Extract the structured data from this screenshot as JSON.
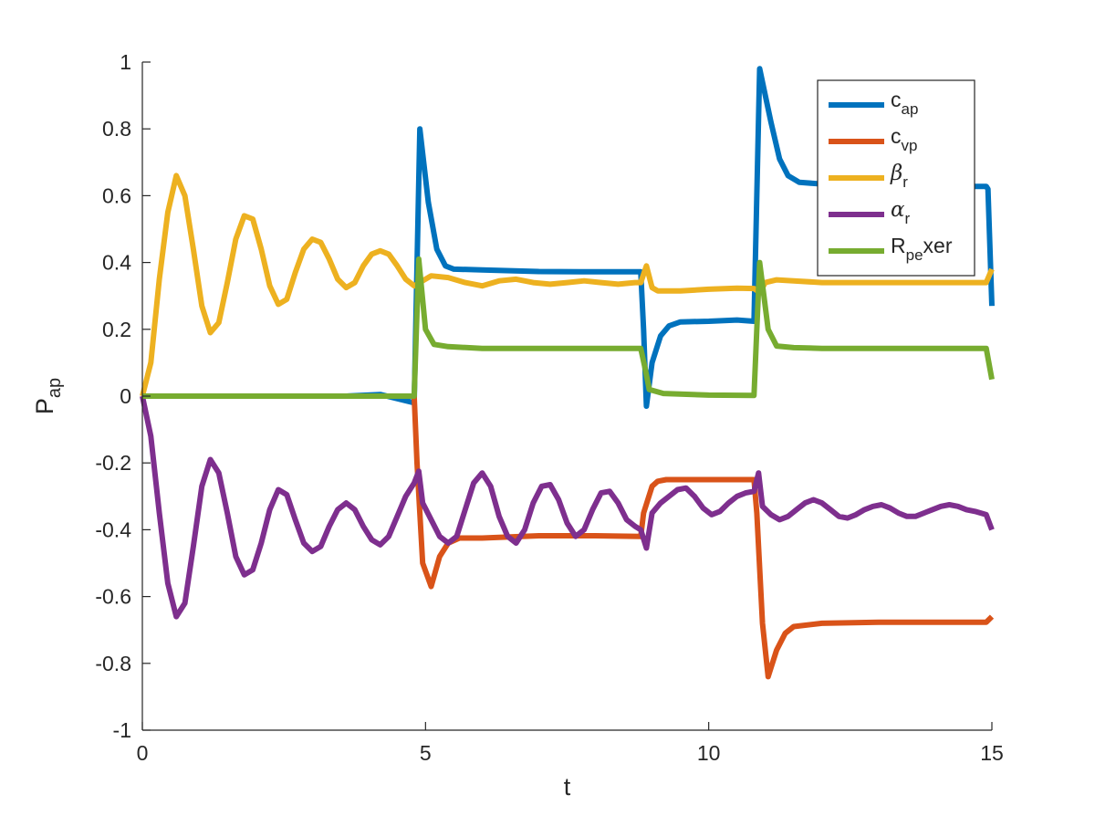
{
  "chart_data": {
    "type": "line",
    "xlabel": "t",
    "ylabel": {
      "main": "P",
      "sub": "ap"
    },
    "xlim": [
      0,
      15
    ],
    "ylim": [
      -1,
      1
    ],
    "xticks": [
      0,
      5,
      10,
      15
    ],
    "xtick_labels": [
      "0",
      "5",
      "10",
      "15"
    ],
    "yticks": [
      1,
      0.8,
      0.6,
      0.4,
      0.2,
      0,
      -0.2,
      -0.4,
      -0.6,
      -0.8,
      -1
    ],
    "ytick_labels": [
      "1",
      "0.8",
      "0.6",
      "0.4",
      "0.2",
      "0",
      "-0.2",
      "-0.4",
      "-0.6",
      "-0.8",
      "-1"
    ],
    "grid": false,
    "legend_position": "top-right",
    "series": [
      {
        "legend_main": "c",
        "legend_sub": "ap",
        "legend_suffix": "",
        "greek": false,
        "color": "#0072BD",
        "points": [
          [
            0,
            0
          ],
          [
            0.6,
            0
          ],
          [
            1.2,
            0
          ],
          [
            2,
            0
          ],
          [
            3,
            0
          ],
          [
            3.6,
            0
          ],
          [
            4.2,
            0.005
          ],
          [
            4.8,
            -0.02
          ],
          [
            4.9,
            0.8
          ],
          [
            5.05,
            0.58
          ],
          [
            5.2,
            0.44
          ],
          [
            5.35,
            0.39
          ],
          [
            5.5,
            0.38
          ],
          [
            6,
            0.378
          ],
          [
            7,
            0.373
          ],
          [
            8,
            0.372
          ],
          [
            8.8,
            0.372
          ],
          [
            8.85,
            0.2
          ],
          [
            8.9,
            -0.03
          ],
          [
            9.0,
            0.1
          ],
          [
            9.15,
            0.18
          ],
          [
            9.3,
            0.21
          ],
          [
            9.5,
            0.222
          ],
          [
            10,
            0.224
          ],
          [
            10.5,
            0.228
          ],
          [
            10.8,
            0.224
          ],
          [
            10.9,
            0.98
          ],
          [
            11.1,
            0.82
          ],
          [
            11.25,
            0.71
          ],
          [
            11.4,
            0.66
          ],
          [
            11.6,
            0.64
          ],
          [
            12,
            0.635
          ],
          [
            13,
            0.63
          ],
          [
            14,
            0.628
          ],
          [
            14.9,
            0.628
          ],
          [
            14.93,
            0.62
          ],
          [
            15,
            0.27
          ]
        ]
      },
      {
        "legend_main": "c",
        "legend_sub": "vp",
        "legend_suffix": "",
        "greek": false,
        "color": "#D95319",
        "points": [
          [
            0,
            0
          ],
          [
            0.6,
            0
          ],
          [
            1.2,
            0
          ],
          [
            2,
            0
          ],
          [
            3,
            0
          ],
          [
            4,
            0
          ],
          [
            4.8,
            0
          ],
          [
            4.85,
            -0.2
          ],
          [
            4.95,
            -0.5
          ],
          [
            5.1,
            -0.57
          ],
          [
            5.25,
            -0.48
          ],
          [
            5.4,
            -0.44
          ],
          [
            5.6,
            -0.425
          ],
          [
            6,
            -0.425
          ],
          [
            7,
            -0.418
          ],
          [
            8,
            -0.418
          ],
          [
            8.8,
            -0.42
          ],
          [
            8.85,
            -0.35
          ],
          [
            9.0,
            -0.27
          ],
          [
            9.1,
            -0.255
          ],
          [
            9.25,
            -0.25
          ],
          [
            10,
            -0.25
          ],
          [
            10.8,
            -0.25
          ],
          [
            10.85,
            -0.35
          ],
          [
            10.95,
            -0.68
          ],
          [
            11.05,
            -0.84
          ],
          [
            11.2,
            -0.76
          ],
          [
            11.35,
            -0.71
          ],
          [
            11.5,
            -0.69
          ],
          [
            12,
            -0.68
          ],
          [
            13,
            -0.677
          ],
          [
            14,
            -0.677
          ],
          [
            14.9,
            -0.677
          ],
          [
            15,
            -0.66
          ]
        ]
      },
      {
        "legend_main": "β",
        "legend_sub": "r",
        "legend_suffix": "",
        "greek": true,
        "color": "#EDB120",
        "points": [
          [
            0,
            0
          ],
          [
            0.15,
            0.1
          ],
          [
            0.3,
            0.35
          ],
          [
            0.45,
            0.55
          ],
          [
            0.6,
            0.66
          ],
          [
            0.75,
            0.6
          ],
          [
            0.9,
            0.44
          ],
          [
            1.05,
            0.27
          ],
          [
            1.2,
            0.19
          ],
          [
            1.35,
            0.22
          ],
          [
            1.5,
            0.34
          ],
          [
            1.65,
            0.47
          ],
          [
            1.8,
            0.54
          ],
          [
            1.95,
            0.53
          ],
          [
            2.1,
            0.44
          ],
          [
            2.25,
            0.33
          ],
          [
            2.4,
            0.275
          ],
          [
            2.55,
            0.29
          ],
          [
            2.7,
            0.37
          ],
          [
            2.85,
            0.44
          ],
          [
            3.0,
            0.47
          ],
          [
            3.15,
            0.46
          ],
          [
            3.3,
            0.41
          ],
          [
            3.45,
            0.35
          ],
          [
            3.6,
            0.325
          ],
          [
            3.75,
            0.34
          ],
          [
            3.9,
            0.39
          ],
          [
            4.05,
            0.425
          ],
          [
            4.2,
            0.435
          ],
          [
            4.35,
            0.425
          ],
          [
            4.5,
            0.39
          ],
          [
            4.65,
            0.35
          ],
          [
            4.8,
            0.33
          ],
          [
            4.95,
            0.345
          ],
          [
            5.1,
            0.36
          ],
          [
            5.4,
            0.355
          ],
          [
            5.7,
            0.34
          ],
          [
            6.0,
            0.33
          ],
          [
            6.3,
            0.345
          ],
          [
            6.6,
            0.35
          ],
          [
            6.9,
            0.34
          ],
          [
            7.2,
            0.335
          ],
          [
            7.5,
            0.34
          ],
          [
            7.8,
            0.345
          ],
          [
            8.1,
            0.34
          ],
          [
            8.4,
            0.335
          ],
          [
            8.7,
            0.34
          ],
          [
            8.8,
            0.34
          ],
          [
            8.9,
            0.39
          ],
          [
            9.0,
            0.325
          ],
          [
            9.1,
            0.315
          ],
          [
            9.5,
            0.315
          ],
          [
            10,
            0.32
          ],
          [
            10.5,
            0.323
          ],
          [
            10.8,
            0.322
          ],
          [
            10.9,
            0.31
          ],
          [
            11.0,
            0.34
          ],
          [
            11.2,
            0.348
          ],
          [
            11.5,
            0.345
          ],
          [
            12,
            0.34
          ],
          [
            13,
            0.34
          ],
          [
            14,
            0.34
          ],
          [
            14.9,
            0.34
          ],
          [
            15,
            0.38
          ]
        ]
      },
      {
        "legend_main": "α",
        "legend_sub": "r",
        "legend_suffix": "",
        "greek": true,
        "color": "#7E2F8E",
        "points": [
          [
            0,
            0
          ],
          [
            0.15,
            -0.12
          ],
          [
            0.3,
            -0.35
          ],
          [
            0.45,
            -0.56
          ],
          [
            0.6,
            -0.66
          ],
          [
            0.75,
            -0.62
          ],
          [
            0.9,
            -0.45
          ],
          [
            1.05,
            -0.27
          ],
          [
            1.2,
            -0.19
          ],
          [
            1.35,
            -0.23
          ],
          [
            1.5,
            -0.35
          ],
          [
            1.65,
            -0.48
          ],
          [
            1.8,
            -0.535
          ],
          [
            1.95,
            -0.52
          ],
          [
            2.1,
            -0.44
          ],
          [
            2.25,
            -0.34
          ],
          [
            2.4,
            -0.28
          ],
          [
            2.55,
            -0.295
          ],
          [
            2.7,
            -0.37
          ],
          [
            2.85,
            -0.44
          ],
          [
            3.0,
            -0.465
          ],
          [
            3.15,
            -0.45
          ],
          [
            3.3,
            -0.39
          ],
          [
            3.45,
            -0.34
          ],
          [
            3.6,
            -0.32
          ],
          [
            3.75,
            -0.34
          ],
          [
            3.9,
            -0.39
          ],
          [
            4.05,
            -0.43
          ],
          [
            4.2,
            -0.445
          ],
          [
            4.35,
            -0.42
          ],
          [
            4.5,
            -0.36
          ],
          [
            4.65,
            -0.3
          ],
          [
            4.8,
            -0.26
          ],
          [
            4.88,
            -0.225
          ],
          [
            4.95,
            -0.32
          ],
          [
            5.1,
            -0.37
          ],
          [
            5.25,
            -0.42
          ],
          [
            5.4,
            -0.44
          ],
          [
            5.55,
            -0.42
          ],
          [
            5.7,
            -0.34
          ],
          [
            5.85,
            -0.26
          ],
          [
            6.0,
            -0.23
          ],
          [
            6.15,
            -0.27
          ],
          [
            6.3,
            -0.36
          ],
          [
            6.45,
            -0.42
          ],
          [
            6.6,
            -0.44
          ],
          [
            6.75,
            -0.4
          ],
          [
            6.9,
            -0.32
          ],
          [
            7.05,
            -0.27
          ],
          [
            7.2,
            -0.265
          ],
          [
            7.35,
            -0.31
          ],
          [
            7.5,
            -0.38
          ],
          [
            7.65,
            -0.42
          ],
          [
            7.8,
            -0.4
          ],
          [
            7.95,
            -0.34
          ],
          [
            8.1,
            -0.29
          ],
          [
            8.25,
            -0.285
          ],
          [
            8.4,
            -0.32
          ],
          [
            8.55,
            -0.37
          ],
          [
            8.7,
            -0.39
          ],
          [
            8.8,
            -0.4
          ],
          [
            8.9,
            -0.455
          ],
          [
            9.0,
            -0.35
          ],
          [
            9.15,
            -0.32
          ],
          [
            9.3,
            -0.3
          ],
          [
            9.45,
            -0.28
          ],
          [
            9.6,
            -0.275
          ],
          [
            9.75,
            -0.3
          ],
          [
            9.9,
            -0.335
          ],
          [
            10.05,
            -0.355
          ],
          [
            10.2,
            -0.345
          ],
          [
            10.35,
            -0.32
          ],
          [
            10.5,
            -0.3
          ],
          [
            10.65,
            -0.29
          ],
          [
            10.8,
            -0.285
          ],
          [
            10.88,
            -0.23
          ],
          [
            10.95,
            -0.33
          ],
          [
            11.1,
            -0.355
          ],
          [
            11.25,
            -0.37
          ],
          [
            11.4,
            -0.36
          ],
          [
            11.55,
            -0.34
          ],
          [
            11.7,
            -0.32
          ],
          [
            11.85,
            -0.31
          ],
          [
            12.0,
            -0.32
          ],
          [
            12.15,
            -0.34
          ],
          [
            12.3,
            -0.36
          ],
          [
            12.45,
            -0.365
          ],
          [
            12.6,
            -0.355
          ],
          [
            12.75,
            -0.34
          ],
          [
            12.9,
            -0.33
          ],
          [
            13.05,
            -0.325
          ],
          [
            13.2,
            -0.335
          ],
          [
            13.35,
            -0.35
          ],
          [
            13.5,
            -0.36
          ],
          [
            13.65,
            -0.36
          ],
          [
            13.8,
            -0.35
          ],
          [
            13.95,
            -0.34
          ],
          [
            14.1,
            -0.33
          ],
          [
            14.25,
            -0.325
          ],
          [
            14.4,
            -0.33
          ],
          [
            14.55,
            -0.34
          ],
          [
            14.7,
            -0.345
          ],
          [
            14.9,
            -0.355
          ],
          [
            15,
            -0.4
          ]
        ]
      },
      {
        "legend_main": "R",
        "legend_sub": "pe",
        "legend_suffix": "xer",
        "greek": false,
        "color": "#77AC30",
        "points": [
          [
            0,
            0
          ],
          [
            1,
            0
          ],
          [
            2,
            0
          ],
          [
            3,
            0
          ],
          [
            4,
            0
          ],
          [
            4.8,
            0
          ],
          [
            4.88,
            0.41
          ],
          [
            5.0,
            0.2
          ],
          [
            5.15,
            0.155
          ],
          [
            5.4,
            0.148
          ],
          [
            6,
            0.143
          ],
          [
            7,
            0.143
          ],
          [
            8,
            0.143
          ],
          [
            8.8,
            0.143
          ],
          [
            8.88,
            0.08
          ],
          [
            8.95,
            0.02
          ],
          [
            9.2,
            0.008
          ],
          [
            10,
            0.003
          ],
          [
            10.8,
            0.002
          ],
          [
            10.9,
            0.4
          ],
          [
            11.05,
            0.2
          ],
          [
            11.2,
            0.15
          ],
          [
            11.5,
            0.145
          ],
          [
            12,
            0.143
          ],
          [
            13,
            0.143
          ],
          [
            14,
            0.143
          ],
          [
            14.9,
            0.143
          ],
          [
            15,
            0.05
          ]
        ]
      }
    ]
  }
}
